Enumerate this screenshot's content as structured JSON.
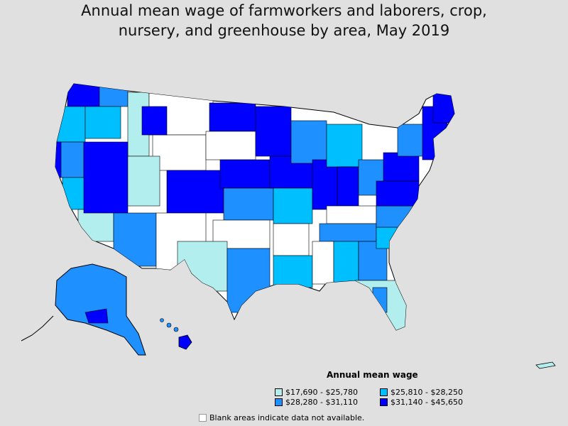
{
  "title": {
    "line1": "Annual mean wage of farmworkers and laborers, crop,",
    "line2": "nursery, and greenhouse by area, May 2019"
  },
  "legend": {
    "title": "Annual mean wage",
    "items": [
      {
        "label": "$17,690 - $25,780",
        "color": "#b3eeee"
      },
      {
        "label": "$25,810 - $28,250",
        "color": "#00bfff"
      },
      {
        "label": "$28,280 - $31,110",
        "color": "#1e90ff"
      },
      {
        "label": "$31,140 - $45,650",
        "color": "#0000ff"
      }
    ]
  },
  "note": "Blank areas indicate data not available.",
  "colors": {
    "background": "#e0e0e0",
    "blank": "#ffffff",
    "border": "#000000"
  }
}
